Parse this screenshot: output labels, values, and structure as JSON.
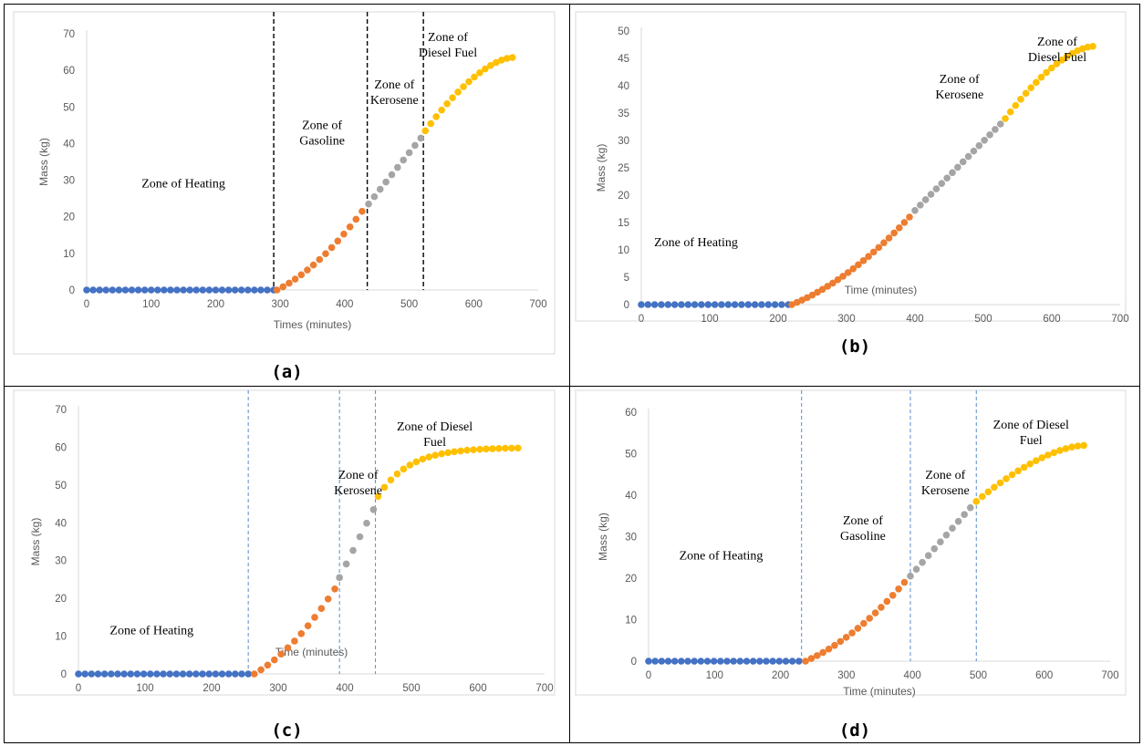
{
  "charts": [
    {
      "id": "a",
      "label": "(a)",
      "chart_data": {
        "type": "scatter",
        "xlabel": "Times (minutes)",
        "ylabel": "Mass (kg)",
        "xlim": [
          0,
          700
        ],
        "ylim": [
          0,
          70
        ],
        "xticks": [
          0,
          100,
          200,
          300,
          400,
          500,
          600,
          700
        ],
        "yticks": [
          0,
          10,
          20,
          30,
          40,
          50,
          60,
          70
        ],
        "boundary_style": "dashed-black",
        "boundaries": [
          290,
          435,
          522
        ],
        "zones": [
          {
            "text": [
              "Zone of Heating"
            ],
            "x": 150,
            "y": 28
          },
          {
            "text": [
              "Zone of",
              "Gasoline"
            ],
            "x": 365,
            "y": 44
          },
          {
            "text": [
              "Zone of",
              "Kerosene"
            ],
            "x": 477,
            "y": 55
          },
          {
            "text": [
              "Zone of",
              "Diesel Fuel"
            ],
            "x": 560,
            "y": 68
          }
        ],
        "series": [
          {
            "color": "#4472c4",
            "start": 0,
            "end": 290,
            "n": 30,
            "y0": 0,
            "y1": 0,
            "shape": "flat"
          },
          {
            "color": "#ed7d31",
            "start": 295,
            "end": 427,
            "n": 15,
            "y0": 0,
            "y1": 21.5,
            "shape": "convex"
          },
          {
            "color": "#a5a5a5",
            "start": 437,
            "end": 518,
            "n": 10,
            "y0": 23.5,
            "y1": 41.5,
            "shape": "linear"
          },
          {
            "color": "#ffc000",
            "start": 525,
            "end": 660,
            "n": 17,
            "y0": 43.5,
            "y1": 63.5,
            "shape": "concave"
          }
        ]
      }
    },
    {
      "id": "b",
      "label": "(b)",
      "chart_data": {
        "type": "scatter",
        "xlabel": "Time (minutes)",
        "ylabel": "Mass (kg)",
        "xlim": [
          0,
          700
        ],
        "ylim": [
          0,
          50
        ],
        "xticks": [
          0,
          100,
          200,
          300,
          400,
          500,
          600,
          700
        ],
        "yticks": [
          0,
          5,
          10,
          15,
          20,
          25,
          30,
          35,
          40,
          45,
          50
        ],
        "boundary_style": "none",
        "boundaries": [],
        "zones": [
          {
            "text": [
              "Zone of Heating"
            ],
            "x": 80,
            "y": 10.7
          },
          {
            "text": [
              "Zone of",
              "Kerosene"
            ],
            "x": 465,
            "y": 40.5
          },
          {
            "text": [
              "Zone of",
              "Diesel Fuel"
            ],
            "x": 608,
            "y": 47.3
          }
        ],
        "series": [
          {
            "color": "#4472c4",
            "start": 0,
            "end": 215,
            "n": 23,
            "y0": 0,
            "y1": 0,
            "shape": "flat"
          },
          {
            "color": "#ed7d31",
            "start": 220,
            "end": 392,
            "n": 24,
            "y0": 0,
            "y1": 16,
            "shape": "convex"
          },
          {
            "color": "#a5a5a5",
            "start": 400,
            "end": 525,
            "n": 17,
            "y0": 17.2,
            "y1": 33,
            "shape": "linear"
          },
          {
            "color": "#ffc000",
            "start": 532,
            "end": 660,
            "n": 18,
            "y0": 34,
            "y1": 47.2,
            "shape": "concave"
          }
        ]
      }
    },
    {
      "id": "c",
      "label": "(c)",
      "chart_data": {
        "type": "scatter",
        "xlabel": "Time (minutes)",
        "ylabel": "Mass (kg)",
        "xlim": [
          0,
          700
        ],
        "ylim": [
          0,
          70
        ],
        "xticks": [
          0,
          100,
          200,
          300,
          400,
          500,
          600,
          700
        ],
        "yticks": [
          0,
          10,
          20,
          30,
          40,
          50,
          60,
          70
        ],
        "boundary_style": "dashed-blue",
        "boundaries": [
          255,
          392,
          446
        ],
        "zones": [
          {
            "text": [
              "Zone of Heating"
            ],
            "x": 110,
            "y": 10.5
          },
          {
            "text": [
              "Zone of",
              "Kerosene"
            ],
            "x": 420,
            "y": 51.7
          },
          {
            "text": [
              "Zone of Diesel",
              "Fuel"
            ],
            "x": 535,
            "y": 64.5
          }
        ],
        "series": [
          {
            "color": "#4472c4",
            "start": 0,
            "end": 255,
            "n": 27,
            "y0": 0,
            "y1": 0,
            "shape": "flat"
          },
          {
            "color": "#ed7d31",
            "start": 264,
            "end": 385,
            "n": 13,
            "y0": 0,
            "y1": 22.5,
            "shape": "convex"
          },
          {
            "color": "#a5a5a5",
            "start": 392,
            "end": 443,
            "n": 6,
            "y0": 25.5,
            "y1": 43.5,
            "shape": "linear"
          },
          {
            "color": "#ffc000",
            "start": 450,
            "end": 660,
            "n": 23,
            "y0": 47,
            "y1": 59.8,
            "shape": "saturate"
          }
        ]
      }
    },
    {
      "id": "d",
      "label": "(d)",
      "chart_data": {
        "type": "scatter",
        "xlabel": "Time (minutes)",
        "ylabel": "Mass (kg)",
        "xlim": [
          0,
          700
        ],
        "ylim": [
          0,
          60
        ],
        "xticks": [
          0,
          100,
          200,
          300,
          400,
          500,
          600,
          700
        ],
        "yticks": [
          0,
          10,
          20,
          30,
          40,
          50,
          60
        ],
        "boundary_style": "dashed-blue",
        "boundaries": [
          232,
          397,
          497
        ],
        "zones": [
          {
            "text": [
              "Zone of Heating"
            ],
            "x": 110,
            "y": 24.5
          },
          {
            "text": [
              "Zone of",
              "Gasoline"
            ],
            "x": 325,
            "y": 33
          },
          {
            "text": [
              "Zone of",
              "Kerosene"
            ],
            "x": 450,
            "y": 44
          },
          {
            "text": [
              "Zone of Diesel",
              "Fuel"
            ],
            "x": 580,
            "y": 56
          }
        ],
        "series": [
          {
            "color": "#4472c4",
            "start": 0,
            "end": 228,
            "n": 24,
            "y0": 0,
            "y1": 0,
            "shape": "flat"
          },
          {
            "color": "#ed7d31",
            "start": 238,
            "end": 388,
            "n": 18,
            "y0": 0,
            "y1": 19,
            "shape": "convex"
          },
          {
            "color": "#a5a5a5",
            "start": 397,
            "end": 488,
            "n": 11,
            "y0": 20.5,
            "y1": 37,
            "shape": "linear"
          },
          {
            "color": "#ffc000",
            "start": 497,
            "end": 660,
            "n": 19,
            "y0": 38.5,
            "y1": 52,
            "shape": "concave"
          }
        ]
      }
    }
  ]
}
